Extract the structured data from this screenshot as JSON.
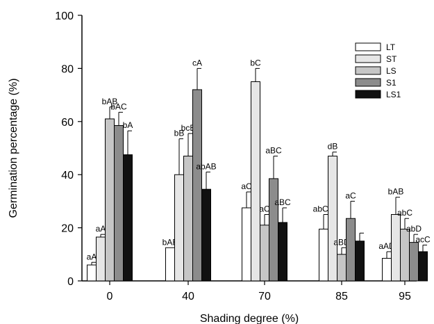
{
  "chart_data": {
    "type": "bar",
    "title": "",
    "xlabel": "Shading degree (%)",
    "ylabel": "Germination percentage (%)",
    "ylim": [
      0,
      100
    ],
    "yticks": [
      0,
      20,
      40,
      60,
      80,
      100
    ],
    "categories": [
      "0",
      "40",
      "70",
      "85",
      "95"
    ],
    "legend_position": "top-right",
    "grid": false,
    "series": [
      {
        "name": "LT",
        "color": "#ffffff",
        "values": [
          6,
          12.5,
          27.5,
          19.5,
          8.5
        ],
        "errors": [
          1,
          0,
          6,
          5.5,
          2.5
        ],
        "labels": [
          "aA",
          "bAB",
          "aC",
          "abCD",
          "aAD"
        ]
      },
      {
        "name": "ST",
        "color": "#e6e6e6",
        "values": [
          16.5,
          40,
          75,
          47,
          25
        ],
        "errors": [
          1,
          13.5,
          5,
          1.5,
          6.5
        ],
        "labels": [
          "aA",
          "bB",
          "bC",
          "dB",
          "bAB"
        ]
      },
      {
        "name": "LS",
        "color": "#c6c6c6",
        "values": [
          61,
          47,
          21,
          10,
          19.5
        ],
        "errors": [
          4.5,
          8.5,
          4,
          2.5,
          4
        ],
        "labels": [
          "bAB",
          "bcB",
          "aC",
          "aBD",
          "abC"
        ]
      },
      {
        "name": "S1",
        "color": "#8c8c8c",
        "values": [
          58.5,
          72,
          38.5,
          23.5,
          14.5
        ],
        "errors": [
          5,
          8,
          8.5,
          6.5,
          3
        ],
        "labels": [
          "bAC",
          "cA",
          "aBC",
          "aC",
          "abD"
        ]
      },
      {
        "name": "LS1",
        "color": "#111111",
        "values": [
          47.5,
          34.5,
          22,
          15,
          11
        ],
        "errors": [
          9,
          6.5,
          5.5,
          3,
          2.5
        ],
        "labels": [
          "bA",
          "abAB",
          "aBC",
          "",
          "acC"
        ]
      }
    ]
  }
}
